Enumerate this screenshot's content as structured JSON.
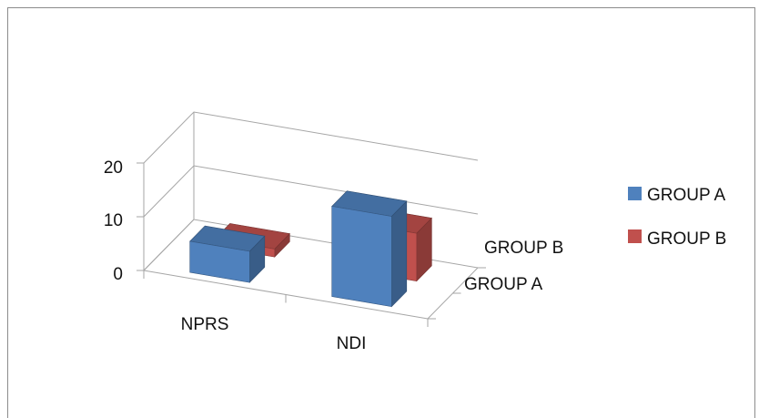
{
  "chart_data": {
    "type": "bar",
    "style": "3d-clustered-columns",
    "title": "",
    "xlabel": "",
    "ylabel": "",
    "categories": [
      "NPRS",
      "NDI"
    ],
    "depth_categories": [
      "GROUP A",
      "GROUP B"
    ],
    "series": [
      {
        "name": "GROUP A",
        "values": [
          5.8,
          16.8
        ],
        "color": "#4f81bd"
      },
      {
        "name": "GROUP B",
        "values": [
          1.5,
          8.9
        ],
        "color": "#c0504d"
      }
    ],
    "ylim": [
      0,
      20
    ],
    "yticks": [
      0,
      10,
      20
    ],
    "grid": true,
    "legend": {
      "placement": "right"
    }
  }
}
